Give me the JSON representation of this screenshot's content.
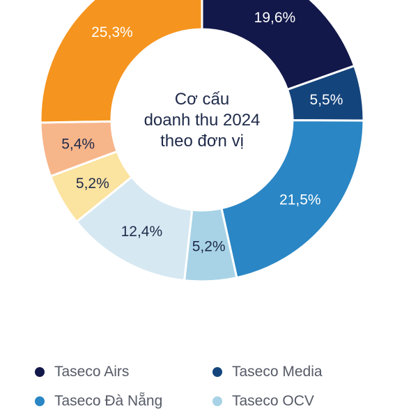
{
  "chart_data": {
    "type": "pie",
    "title": "Cơ cấu doanh thu 2024 theo đơn vị",
    "title_lines": [
      "Cơ cấu",
      "doanh thu 2024",
      "theo đơn vị"
    ],
    "value_labels": [
      "19,6%",
      "5,5%",
      "21,5%",
      "5,2%",
      "12,4%",
      "5,2%",
      "5,4%",
      "25,3%"
    ],
    "series": [
      {
        "name": "Taseco Airs",
        "value": 19.6,
        "color": "#13184a"
      },
      {
        "name": "Taseco Media",
        "value": 5.5,
        "color": "#14447c"
      },
      {
        "name": "Taseco Đà Nẵng",
        "value": 21.5,
        "color": "#2a86c4"
      },
      {
        "name": "Taseco OCV",
        "value": 5.2,
        "color": "#a8d3e6"
      },
      {
        "value": 12.4,
        "color": "#d6e8f2"
      },
      {
        "value": 5.2,
        "color": "#fbe3a0"
      },
      {
        "value": 5.4,
        "color": "#f7b58a"
      },
      {
        "value": 25.3,
        "color": "#f5941e"
      }
    ],
    "legend": [
      "Taseco Airs",
      "Taseco Media",
      "Taseco Đà Nẵng",
      "Taseco OCV"
    ],
    "legend_position": "bottom"
  }
}
